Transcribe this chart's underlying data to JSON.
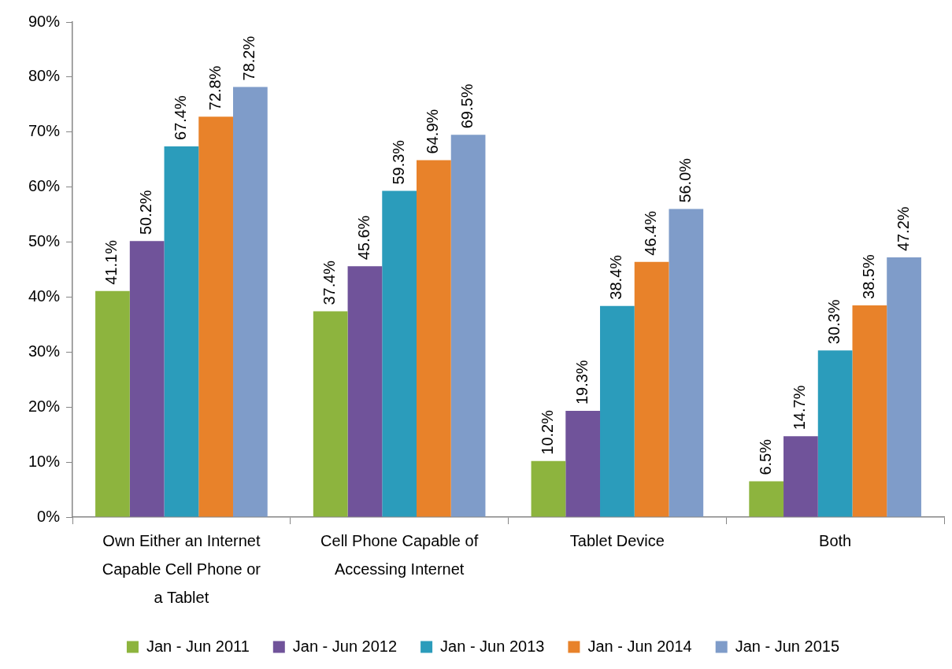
{
  "chart_data": {
    "type": "bar",
    "categories": [
      "Own Either an Internet Capable Cell Phone or a Tablet",
      "Cell Phone Capable of Accessing Internet",
      "Tablet Device",
      "Both"
    ],
    "series": [
      {
        "name": "Jan - Jun 2011",
        "color": "#8db43e",
        "values": [
          41.1,
          37.4,
          10.2,
          6.5
        ],
        "value_labels": [
          "41.1%",
          "37.4%",
          "10.2%",
          "6.5%"
        ]
      },
      {
        "name": "Jan - Jun 2012",
        "color": "#70539a",
        "values": [
          50.2,
          45.6,
          19.3,
          14.7
        ],
        "value_labels": [
          "50.2%",
          "45.6%",
          "19.3%",
          "14.7%"
        ]
      },
      {
        "name": "Jan - Jun 2013",
        "color": "#2b9cbb",
        "values": [
          67.4,
          59.3,
          38.4,
          30.3
        ],
        "value_labels": [
          "67.4%",
          "59.3%",
          "38.4%",
          "30.3%"
        ]
      },
      {
        "name": "Jan - Jun 2014",
        "color": "#e8822a",
        "values": [
          72.8,
          64.9,
          46.4,
          38.5
        ],
        "value_labels": [
          "72.8%",
          "64.9%",
          "46.4%",
          "38.5%"
        ]
      },
      {
        "name": "Jan - Jun 2015",
        "color": "#7f9cc9",
        "values": [
          78.2,
          69.5,
          56.0,
          47.2
        ],
        "value_labels": [
          "78.2%",
          "69.5%",
          "56.0%",
          "47.2%"
        ]
      }
    ],
    "ylim": [
      0,
      90
    ],
    "yticks": [
      {
        "value": 0,
        "label": "0%"
      },
      {
        "value": 10,
        "label": "10%"
      },
      {
        "value": 20,
        "label": "20%"
      },
      {
        "value": 30,
        "label": "30%"
      },
      {
        "value": 40,
        "label": "40%"
      },
      {
        "value": 50,
        "label": "50%"
      },
      {
        "value": 60,
        "label": "60%"
      },
      {
        "value": 70,
        "label": "70%"
      },
      {
        "value": 80,
        "label": "80%"
      },
      {
        "value": 90,
        "label": "90%"
      }
    ],
    "grid": false,
    "legend": "bottom"
  }
}
